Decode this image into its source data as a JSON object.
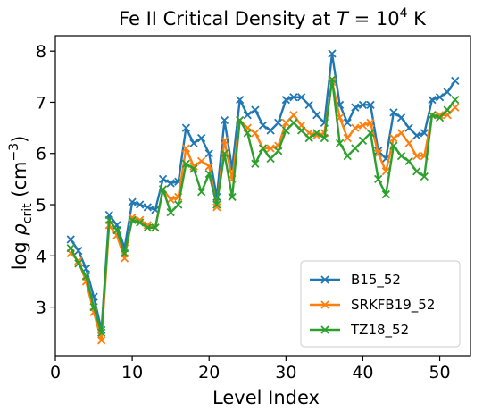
{
  "chart_data": {
    "type": "line",
    "title_main": "Fe II Critical Density at ",
    "title_var": "T",
    "title_eq": " = 10",
    "title_exp": "4",
    "title_unit": " K",
    "xlabel": "Level Index",
    "ylabel_log": "log ",
    "ylabel_rho": "ρ",
    "ylabel_sub": "crit",
    "ylabel_units_open": " (cm",
    "ylabel_units_exp": "−3",
    "ylabel_units_close": ")",
    "xlim": [
      0,
      54
    ],
    "ylim": [
      2.05,
      8.3
    ],
    "x_ticks": [
      0,
      10,
      20,
      30,
      40,
      50
    ],
    "x_tick_labels": [
      "0",
      "10",
      "20",
      "30",
      "40",
      "50"
    ],
    "y_ticks": [
      3,
      4,
      5,
      6,
      7,
      8
    ],
    "y_tick_labels": [
      "3",
      "4",
      "5",
      "6",
      "7",
      "8"
    ],
    "legend_position": "lower right",
    "marker": "x",
    "x": [
      2,
      3,
      4,
      5,
      6,
      7,
      8,
      9,
      10,
      11,
      12,
      13,
      14,
      15,
      16,
      17,
      18,
      19,
      20,
      21,
      22,
      23,
      24,
      25,
      26,
      27,
      28,
      29,
      30,
      31,
      32,
      33,
      34,
      35,
      36,
      37,
      38,
      39,
      40,
      41,
      42,
      43,
      44,
      45,
      46,
      47,
      48,
      49,
      50,
      51,
      52
    ],
    "series": [
      {
        "name": "B15_52",
        "color": "#1f77b4",
        "values": [
          4.32,
          4.1,
          3.75,
          3.2,
          2.55,
          4.8,
          4.6,
          4.15,
          5.05,
          5.0,
          4.95,
          4.9,
          5.5,
          5.42,
          5.45,
          6.5,
          6.2,
          6.3,
          6.0,
          5.15,
          6.65,
          5.7,
          7.05,
          6.75,
          6.85,
          6.55,
          6.45,
          6.6,
          7.05,
          7.1,
          7.1,
          6.95,
          6.75,
          6.6,
          7.95,
          6.95,
          6.6,
          6.9,
          6.95,
          6.95,
          6.05,
          5.9,
          6.8,
          6.7,
          6.5,
          6.35,
          6.4,
          7.05,
          7.1,
          7.2,
          7.42
        ]
      },
      {
        "name": "SRKFB19_52",
        "color": "#ff7f0e",
        "values": [
          4.05,
          3.9,
          3.5,
          2.9,
          2.35,
          4.6,
          4.4,
          3.95,
          4.75,
          4.7,
          4.6,
          4.55,
          5.3,
          5.1,
          5.15,
          6.1,
          5.75,
          5.85,
          5.75,
          4.95,
          6.25,
          5.5,
          6.65,
          6.5,
          6.4,
          6.1,
          6.1,
          6.15,
          6.6,
          6.75,
          6.55,
          6.4,
          6.35,
          6.4,
          7.4,
          6.7,
          6.3,
          6.5,
          6.55,
          6.6,
          6.0,
          5.65,
          6.3,
          6.4,
          6.2,
          5.95,
          5.95,
          6.75,
          6.75,
          6.75,
          6.9
        ]
      },
      {
        "name": "TZ18_52",
        "color": "#2ca02c",
        "values": [
          4.15,
          3.85,
          3.6,
          3.0,
          2.5,
          4.7,
          4.5,
          4.05,
          4.7,
          4.65,
          4.55,
          4.55,
          5.3,
          4.85,
          5.0,
          5.8,
          5.7,
          5.25,
          5.6,
          5.0,
          6.0,
          5.15,
          6.65,
          6.4,
          5.8,
          6.1,
          5.9,
          6.05,
          6.45,
          6.6,
          6.45,
          6.3,
          6.4,
          6.3,
          7.45,
          6.2,
          5.95,
          6.1,
          6.25,
          6.4,
          5.5,
          5.2,
          6.15,
          5.95,
          5.85,
          5.65,
          5.55,
          6.75,
          6.7,
          6.85,
          7.05
        ]
      }
    ]
  }
}
